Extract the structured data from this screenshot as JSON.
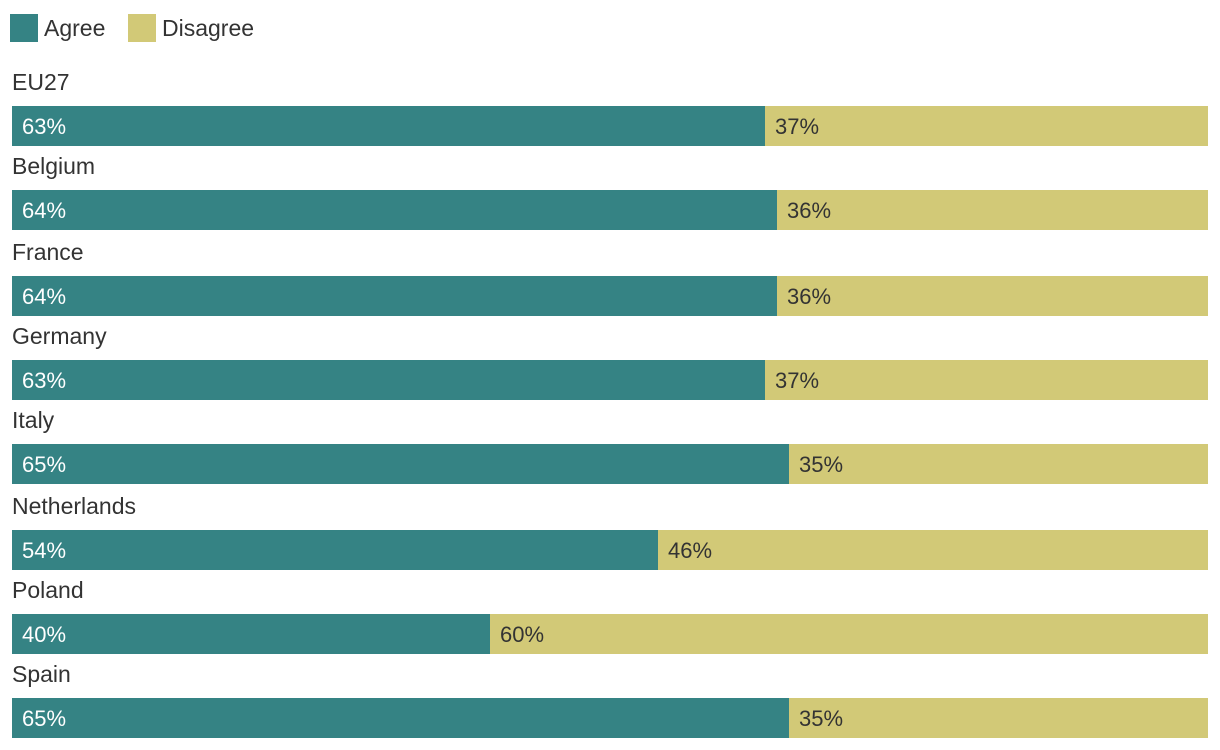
{
  "chart_data": {
    "type": "bar",
    "orientation": "horizontal",
    "stacked": true,
    "normalized": true,
    "title": "",
    "xlabel": "",
    "ylabel": "",
    "xlim": [
      0,
      100
    ],
    "grid": false,
    "legend_position": "top-left",
    "categories": [
      "EU27",
      "Belgium",
      "France",
      "Germany",
      "Italy",
      "Netherlands",
      "Poland",
      "Spain"
    ],
    "series": [
      {
        "name": "Agree",
        "color": "#358384",
        "values": [
          63,
          64,
          64,
          63,
          65,
          54,
          40,
          65
        ],
        "labels": [
          "63%",
          "64%",
          "64%",
          "63%",
          "65%",
          "54%",
          "40%",
          "65%"
        ]
      },
      {
        "name": "Disagree",
        "color": "#d2c977",
        "values": [
          37,
          36,
          36,
          37,
          35,
          46,
          60,
          35
        ],
        "labels": [
          "37%",
          "36%",
          "36%",
          "37%",
          "35%",
          "46%",
          "60%",
          "35%"
        ]
      }
    ]
  }
}
